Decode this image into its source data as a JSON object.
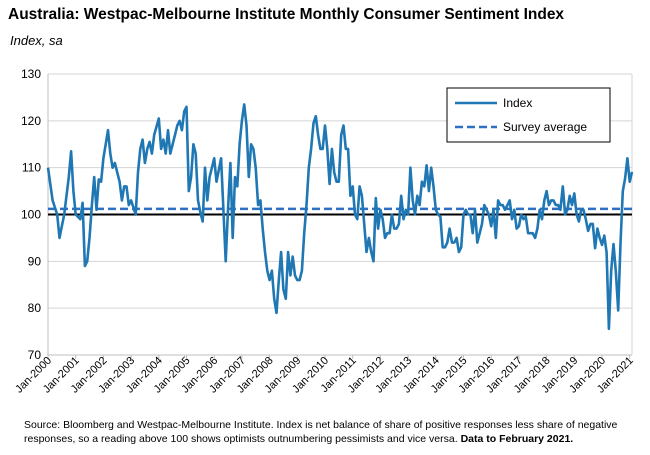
{
  "chart_data": {
    "type": "line",
    "title": "Australia: Westpac-Melbourne Institute Monthly Consumer Sentiment Index",
    "subtitle": "Index, sa",
    "ylim": [
      70,
      130
    ],
    "yticks": [
      70,
      80,
      90,
      100,
      110,
      120,
      130
    ],
    "x_start": "2000-01",
    "x_end": "2021-02",
    "xtick_labels": [
      "Jan-2000",
      "Jan-2001",
      "Jan-2002",
      "Jan-2003",
      "Jan-2004",
      "Jan-2005",
      "Jan-2006",
      "Jan-2007",
      "Jan-2008",
      "Jan-2009",
      "Jan-2010",
      "Jan-2011",
      "Jan-2012",
      "Jan-2013",
      "Jan-2014",
      "Jan-2015",
      "Jan-2016",
      "Jan-2017",
      "Jan-2018",
      "Jan-2019",
      "Jan-2020",
      "Jan-2021"
    ],
    "legend": {
      "position": "top-right",
      "entries": [
        "Index",
        "Survey average"
      ]
    },
    "reference_line": 100,
    "series": [
      {
        "name": "Index",
        "color": "#1f77b4",
        "style": "solid",
        "points": [
          [
            "2000-01",
            110
          ],
          [
            "2000-03",
            103
          ],
          [
            "2000-05",
            100
          ],
          [
            "2000-06",
            95
          ],
          [
            "2000-08",
            100
          ],
          [
            "2000-10",
            108
          ],
          [
            "2000-11",
            113.5
          ],
          [
            "2000-12",
            105
          ],
          [
            "2001-01",
            100
          ],
          [
            "2001-03",
            99
          ],
          [
            "2001-04",
            102.5
          ],
          [
            "2001-05",
            89
          ],
          [
            "2001-06",
            90
          ],
          [
            "2001-07",
            95
          ],
          [
            "2001-08",
            102
          ],
          [
            "2001-09",
            108
          ],
          [
            "2001-10",
            101
          ],
          [
            "2001-11",
            107.5
          ],
          [
            "2001-12",
            107
          ],
          [
            "2002-01",
            112
          ],
          [
            "2002-03",
            118
          ],
          [
            "2002-04",
            113
          ],
          [
            "2002-05",
            110
          ],
          [
            "2002-06",
            111
          ],
          [
            "2002-07",
            109
          ],
          [
            "2002-08",
            107
          ],
          [
            "2002-09",
            103
          ],
          [
            "2002-10",
            106
          ],
          [
            "2002-11",
            106
          ],
          [
            "2002-12",
            102
          ],
          [
            "2003-01",
            103
          ],
          [
            "2003-03",
            100
          ],
          [
            "2003-04",
            109
          ],
          [
            "2003-05",
            114
          ],
          [
            "2003-06",
            116
          ],
          [
            "2003-07",
            111
          ],
          [
            "2003-08",
            114
          ],
          [
            "2003-09",
            115.5
          ],
          [
            "2003-10",
            113
          ],
          [
            "2003-11",
            117
          ],
          [
            "2004-01",
            120.5
          ],
          [
            "2004-02",
            114
          ],
          [
            "2004-03",
            116
          ],
          [
            "2004-04",
            113
          ],
          [
            "2004-05",
            118
          ],
          [
            "2004-06",
            113
          ],
          [
            "2004-08",
            117
          ],
          [
            "2004-09",
            119
          ],
          [
            "2004-10",
            120
          ],
          [
            "2004-11",
            118
          ],
          [
            "2004-12",
            122
          ],
          [
            "2005-01",
            123
          ],
          [
            "2005-02",
            105
          ],
          [
            "2005-03",
            108
          ],
          [
            "2005-04",
            115
          ],
          [
            "2005-05",
            113
          ],
          [
            "2005-06",
            103
          ],
          [
            "2005-07",
            100.5
          ],
          [
            "2005-08",
            98.5
          ],
          [
            "2005-09",
            110
          ],
          [
            "2005-10",
            103
          ],
          [
            "2005-11",
            108
          ],
          [
            "2006-01",
            112
          ],
          [
            "2006-02",
            107
          ],
          [
            "2006-04",
            112
          ],
          [
            "2006-06",
            90
          ],
          [
            "2006-07",
            101
          ],
          [
            "2006-08",
            111
          ],
          [
            "2006-09",
            95
          ],
          [
            "2006-10",
            108
          ],
          [
            "2006-11",
            106
          ],
          [
            "2006-12",
            115
          ],
          [
            "2007-01",
            120
          ],
          [
            "2007-02",
            123.5
          ],
          [
            "2007-03",
            119
          ],
          [
            "2007-04",
            108
          ],
          [
            "2007-05",
            115
          ],
          [
            "2007-06",
            114
          ],
          [
            "2007-07",
            110
          ],
          [
            "2007-08",
            102
          ],
          [
            "2007-09",
            103
          ],
          [
            "2007-10",
            97
          ],
          [
            "2007-11",
            92
          ],
          [
            "2007-12",
            88
          ],
          [
            "2008-01",
            86
          ],
          [
            "2008-02",
            88
          ],
          [
            "2008-03",
            82
          ],
          [
            "2008-04",
            79
          ],
          [
            "2008-05",
            86
          ],
          [
            "2008-06",
            92
          ],
          [
            "2008-07",
            84
          ],
          [
            "2008-08",
            82
          ],
          [
            "2008-09",
            92
          ],
          [
            "2008-10",
            87
          ],
          [
            "2008-11",
            91
          ],
          [
            "2008-12",
            87
          ],
          [
            "2009-01",
            86
          ],
          [
            "2009-02",
            86
          ],
          [
            "2009-03",
            88
          ],
          [
            "2009-04",
            96
          ],
          [
            "2009-05",
            102
          ],
          [
            "2009-06",
            110
          ],
          [
            "2009-07",
            114
          ],
          [
            "2009-08",
            119.5
          ],
          [
            "2009-09",
            121
          ],
          [
            "2009-10",
            117
          ],
          [
            "2009-11",
            114
          ],
          [
            "2009-12",
            114
          ],
          [
            "2010-01",
            119
          ],
          [
            "2010-02",
            114
          ],
          [
            "2010-03",
            106.5
          ],
          [
            "2010-04",
            114
          ],
          [
            "2010-05",
            109
          ],
          [
            "2010-06",
            107
          ],
          [
            "2010-07",
            107
          ],
          [
            "2010-08",
            117
          ],
          [
            "2010-09",
            119
          ],
          [
            "2010-10",
            114
          ],
          [
            "2010-11",
            114
          ],
          [
            "2010-12",
            104
          ],
          [
            "2011-01",
            106
          ],
          [
            "2011-02",
            100
          ],
          [
            "2011-03",
            99
          ],
          [
            "2011-04",
            106
          ],
          [
            "2011-05",
            104
          ],
          [
            "2011-06",
            98
          ],
          [
            "2011-07",
            92
          ],
          [
            "2011-08",
            95
          ],
          [
            "2011-09",
            92
          ],
          [
            "2011-10",
            90
          ],
          [
            "2011-11",
            103.5
          ],
          [
            "2011-12",
            97
          ],
          [
            "2012-01",
            101
          ],
          [
            "2012-02",
            99
          ],
          [
            "2012-03",
            95
          ],
          [
            "2012-04",
            96
          ],
          [
            "2012-05",
            96
          ],
          [
            "2012-06",
            100
          ],
          [
            "2012-07",
            97
          ],
          [
            "2012-08",
            97
          ],
          [
            "2012-09",
            98
          ],
          [
            "2012-10",
            104
          ],
          [
            "2012-11",
            99
          ],
          [
            "2012-12",
            101
          ],
          [
            "2013-01",
            100
          ],
          [
            "2013-02",
            110
          ],
          [
            "2013-03",
            103
          ],
          [
            "2013-04",
            100
          ],
          [
            "2013-05",
            104
          ],
          [
            "2013-06",
            102
          ],
          [
            "2013-07",
            107
          ],
          [
            "2013-08",
            106
          ],
          [
            "2013-09",
            110.5
          ],
          [
            "2013-10",
            105
          ],
          [
            "2013-11",
            110
          ],
          [
            "2013-12",
            106
          ],
          [
            "2014-01",
            101
          ],
          [
            "2014-02",
            100
          ],
          [
            "2014-03",
            99.5
          ],
          [
            "2014-04",
            93
          ],
          [
            "2014-05",
            93
          ],
          [
            "2014-06",
            94
          ],
          [
            "2014-07",
            97
          ],
          [
            "2014-08",
            94
          ],
          [
            "2014-09",
            94
          ],
          [
            "2014-10",
            95
          ],
          [
            "2014-11",
            92
          ],
          [
            "2014-12",
            93
          ],
          [
            "2015-01",
            100
          ],
          [
            "2015-02",
            101
          ],
          [
            "2015-03",
            100
          ],
          [
            "2015-04",
            100
          ],
          [
            "2015-05",
            96
          ],
          [
            "2015-06",
            101
          ],
          [
            "2015-07",
            94
          ],
          [
            "2015-08",
            96
          ],
          [
            "2015-09",
            98
          ],
          [
            "2015-10",
            102
          ],
          [
            "2015-11",
            101
          ],
          [
            "2015-12",
            100
          ],
          [
            "2016-01",
            97.5
          ],
          [
            "2016-02",
            101
          ],
          [
            "2016-03",
            95
          ],
          [
            "2016-04",
            103
          ],
          [
            "2016-05",
            102
          ],
          [
            "2016-06",
            102
          ],
          [
            "2016-07",
            101
          ],
          [
            "2016-08",
            102
          ],
          [
            "2016-09",
            103
          ],
          [
            "2016-10",
            99
          ],
          [
            "2016-11",
            101
          ],
          [
            "2016-12",
            97
          ],
          [
            "2017-01",
            97.5
          ],
          [
            "2017-02",
            100
          ],
          [
            "2017-03",
            99
          ],
          [
            "2017-04",
            99.5
          ],
          [
            "2017-05",
            96
          ],
          [
            "2017-06",
            96
          ],
          [
            "2017-07",
            96
          ],
          [
            "2017-08",
            95
          ],
          [
            "2017-09",
            97
          ],
          [
            "2017-10",
            101
          ],
          [
            "2017-11",
            99
          ],
          [
            "2017-12",
            103
          ],
          [
            "2018-01",
            105
          ],
          [
            "2018-02",
            102
          ],
          [
            "2018-03",
            103
          ],
          [
            "2018-04",
            103
          ],
          [
            "2018-05",
            102
          ],
          [
            "2018-06",
            102
          ],
          [
            "2018-07",
            101
          ],
          [
            "2018-08",
            106
          ],
          [
            "2018-09",
            100
          ],
          [
            "2018-10",
            101
          ],
          [
            "2018-11",
            104
          ],
          [
            "2018-12",
            102
          ],
          [
            "2019-01",
            104.5
          ],
          [
            "2019-02",
            100
          ],
          [
            "2019-03",
            98.5
          ],
          [
            "2019-04",
            101
          ],
          [
            "2019-05",
            101
          ],
          [
            "2019-06",
            99
          ],
          [
            "2019-07",
            96.5
          ],
          [
            "2019-08",
            98
          ],
          [
            "2019-09",
            98
          ],
          [
            "2019-10",
            92.8
          ],
          [
            "2019-11",
            97
          ],
          [
            "2019-12",
            95
          ],
          [
            "2020-01",
            93.5
          ],
          [
            "2020-02",
            95.5
          ],
          [
            "2020-03",
            91.9
          ],
          [
            "2020-04",
            75.6
          ],
          [
            "2020-05",
            88
          ],
          [
            "2020-06",
            93.7
          ],
          [
            "2020-07",
            87.9
          ],
          [
            "2020-08",
            79.5
          ],
          [
            "2020-09",
            93.8
          ],
          [
            "2020-10",
            105
          ],
          [
            "2020-11",
            107.7
          ],
          [
            "2020-12",
            112
          ],
          [
            "2021-01",
            107
          ],
          [
            "2021-02",
            109.1
          ]
        ]
      },
      {
        "name": "Survey average",
        "color": "#2e6fc4",
        "style": "dashed",
        "value": 101.2
      }
    ]
  },
  "source": {
    "text": "Source: Bloomberg and Westpac-Melbourne Institute.  Index is net balance of share of positive responses less share of negative responses, so a reading above 100 shows optimists outnumbering pessimists and vice versa.",
    "bold_text": "Data to February 2021."
  }
}
